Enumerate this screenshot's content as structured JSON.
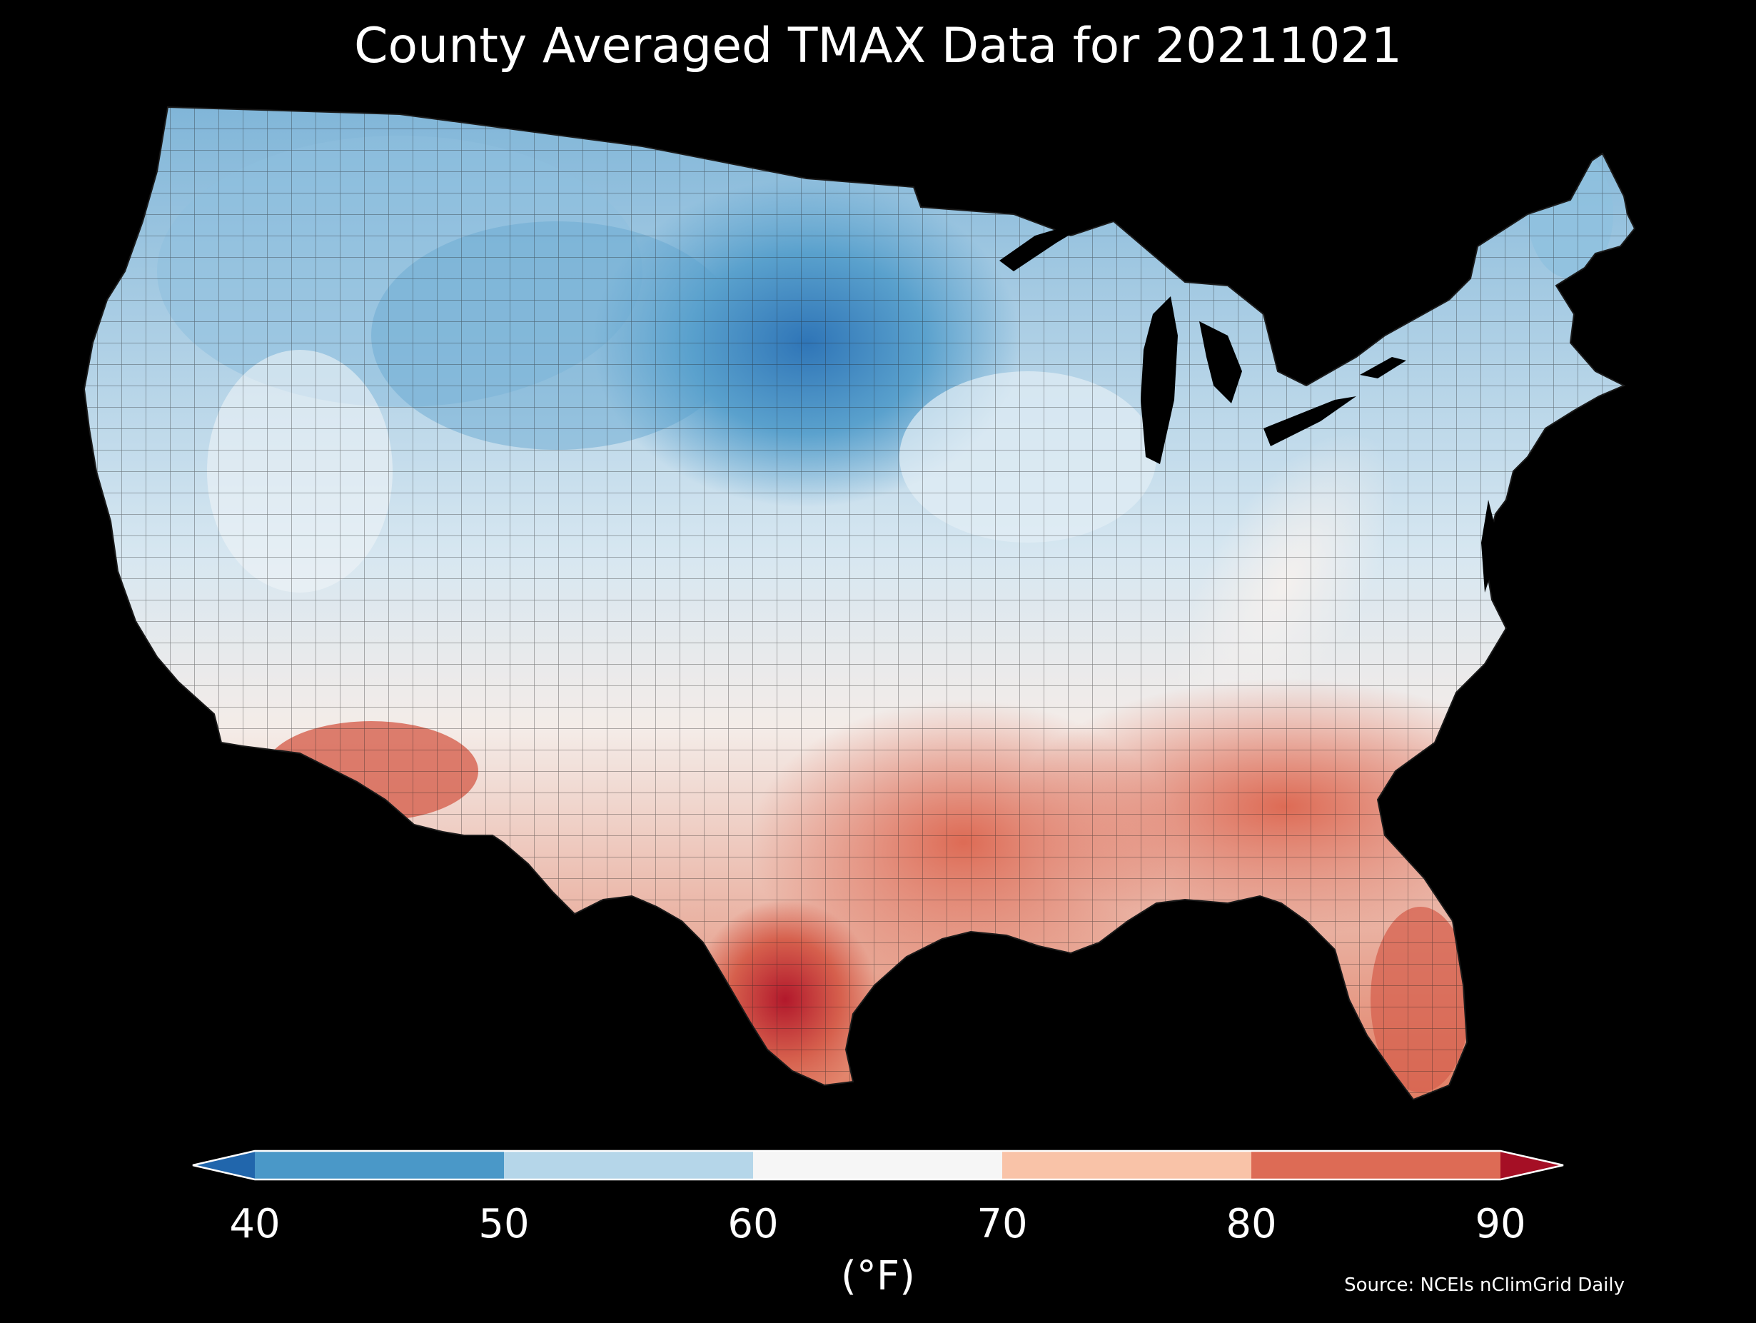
{
  "title": "County Averaged TMAX Data for 20211021",
  "source": "Source: NCEIs nClimGrid Daily",
  "colorbar": {
    "unit_label": "(°F)",
    "ticks": [
      "40",
      "50",
      "60",
      "70",
      "80",
      "90"
    ],
    "bins": [
      {
        "from": 40,
        "to": 50,
        "color": "#4a98c8"
      },
      {
        "from": 50,
        "to": 60,
        "color": "#b5d6e9"
      },
      {
        "from": 60,
        "to": 70,
        "color": "#f6f6f6"
      },
      {
        "from": 70,
        "to": 80,
        "color": "#f9c3a8"
      },
      {
        "from": 80,
        "to": 90,
        "color": "#dd6b55"
      }
    ],
    "under_color": "#2166ac",
    "over_color": "#a50f25",
    "extend": "both"
  },
  "map": {
    "region": "Contiguous United States",
    "level": "county",
    "background_color": "#000000",
    "land_outline_color": "#303030",
    "regional_values_f": [
      {
        "area": "Pacific Northwest coast",
        "value": 52
      },
      {
        "area": "Northern Rockies",
        "value": 55
      },
      {
        "area": "Great Basin",
        "value": 60
      },
      {
        "area": "Montana and Wyoming",
        "value": 51
      },
      {
        "area": "North Dakota and South Dakota",
        "value": 46
      },
      {
        "area": "Nebraska and Kansas",
        "value": 61
      },
      {
        "area": "Upper Midwest",
        "value": 58
      },
      {
        "area": "Ohio Valley",
        "value": 71
      },
      {
        "area": "Appalachians",
        "value": 66
      },
      {
        "area": "New England",
        "value": 63
      },
      {
        "area": "Northern Maine",
        "value": 55
      },
      {
        "area": "Mid-Atlantic coast",
        "value": 74
      },
      {
        "area": "Southeast",
        "value": 80
      },
      {
        "area": "Florida",
        "value": 84
      },
      {
        "area": "Gulf Coast",
        "value": 83
      },
      {
        "area": "South Texas",
        "value": 88
      },
      {
        "area": "Southern Arizona",
        "value": 82
      },
      {
        "area": "Southern California",
        "value": 75
      },
      {
        "area": "New Mexico",
        "value": 70
      }
    ]
  }
}
